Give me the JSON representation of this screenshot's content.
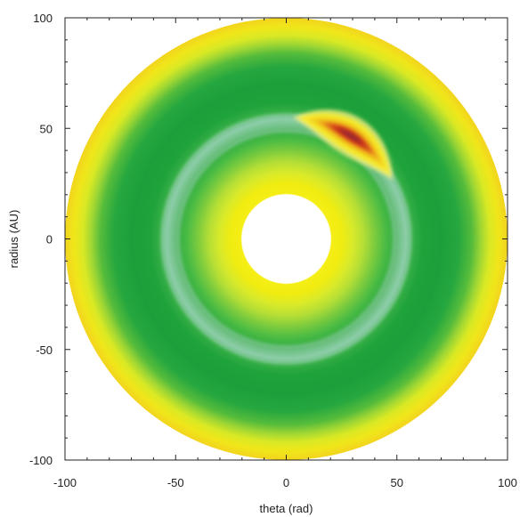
{
  "chart_data": {
    "type": "heatmap",
    "title": "",
    "xlabel": "theta (rad)",
    "ylabel": "radius (AU)",
    "xlim": [
      -100,
      100
    ],
    "ylim": [
      -100,
      100
    ],
    "x_ticks": [
      -100,
      -50,
      0,
      50,
      100
    ],
    "y_ticks": [
      -100,
      -50,
      0,
      50,
      100
    ],
    "x_tick_labels": [
      "-100",
      "-50",
      "0",
      "50",
      "100"
    ],
    "y_tick_labels": [
      "-100",
      "-50",
      "0",
      "50",
      "100"
    ],
    "minor_tick_step": 10,
    "grid": false,
    "legend": "none",
    "colormap": {
      "low": "#1aa53a",
      "mid_green": "#2fb54a",
      "light_green": "#8fd47a",
      "yellow_green": "#d6ea36",
      "yellow": "#f6ea06",
      "orange_yellow": "#f2d21a",
      "orange": "#e08a1a",
      "red": "#cc2a12",
      "dark_red": "#8e2a3a",
      "highlight": "#9ad0a8"
    },
    "disk": {
      "inner_hole_radius": 20,
      "outer_radius": 100,
      "radial_profile": [
        {
          "r": 20,
          "color": "#ffffff"
        },
        {
          "r": 20.5,
          "color": "#f5ee16"
        },
        {
          "r": 25,
          "color": "#f1ec10"
        },
        {
          "r": 30,
          "color": "#d9ea2a"
        },
        {
          "r": 35,
          "color": "#b4de36"
        },
        {
          "r": 40,
          "color": "#7ccb3e"
        },
        {
          "r": 45,
          "color": "#49bb44"
        },
        {
          "r": 50,
          "color": "#2ea93e"
        },
        {
          "r": 54,
          "color": "#7ccaa0"
        },
        {
          "r": 57,
          "color": "#35af45"
        },
        {
          "r": 62,
          "color": "#1ea23a"
        },
        {
          "r": 70,
          "color": "#1c9f3a"
        },
        {
          "r": 78,
          "color": "#26a73f"
        },
        {
          "r": 84,
          "color": "#56bc3b"
        },
        {
          "r": 88,
          "color": "#9ed634"
        },
        {
          "r": 92,
          "color": "#d9e924"
        },
        {
          "r": 96,
          "color": "#f0e61a"
        },
        {
          "r": 100,
          "color": "#f2d41e"
        }
      ],
      "inner_highlight_ring": {
        "r_min": 48,
        "r_max": 57,
        "color": "#9ad0b0"
      }
    },
    "vortex": {
      "center_angle_deg": 58,
      "center_radius": 55,
      "radial_width": 6,
      "angular_extent_deg": 58,
      "peak_color": "#8a2c3a"
    }
  }
}
